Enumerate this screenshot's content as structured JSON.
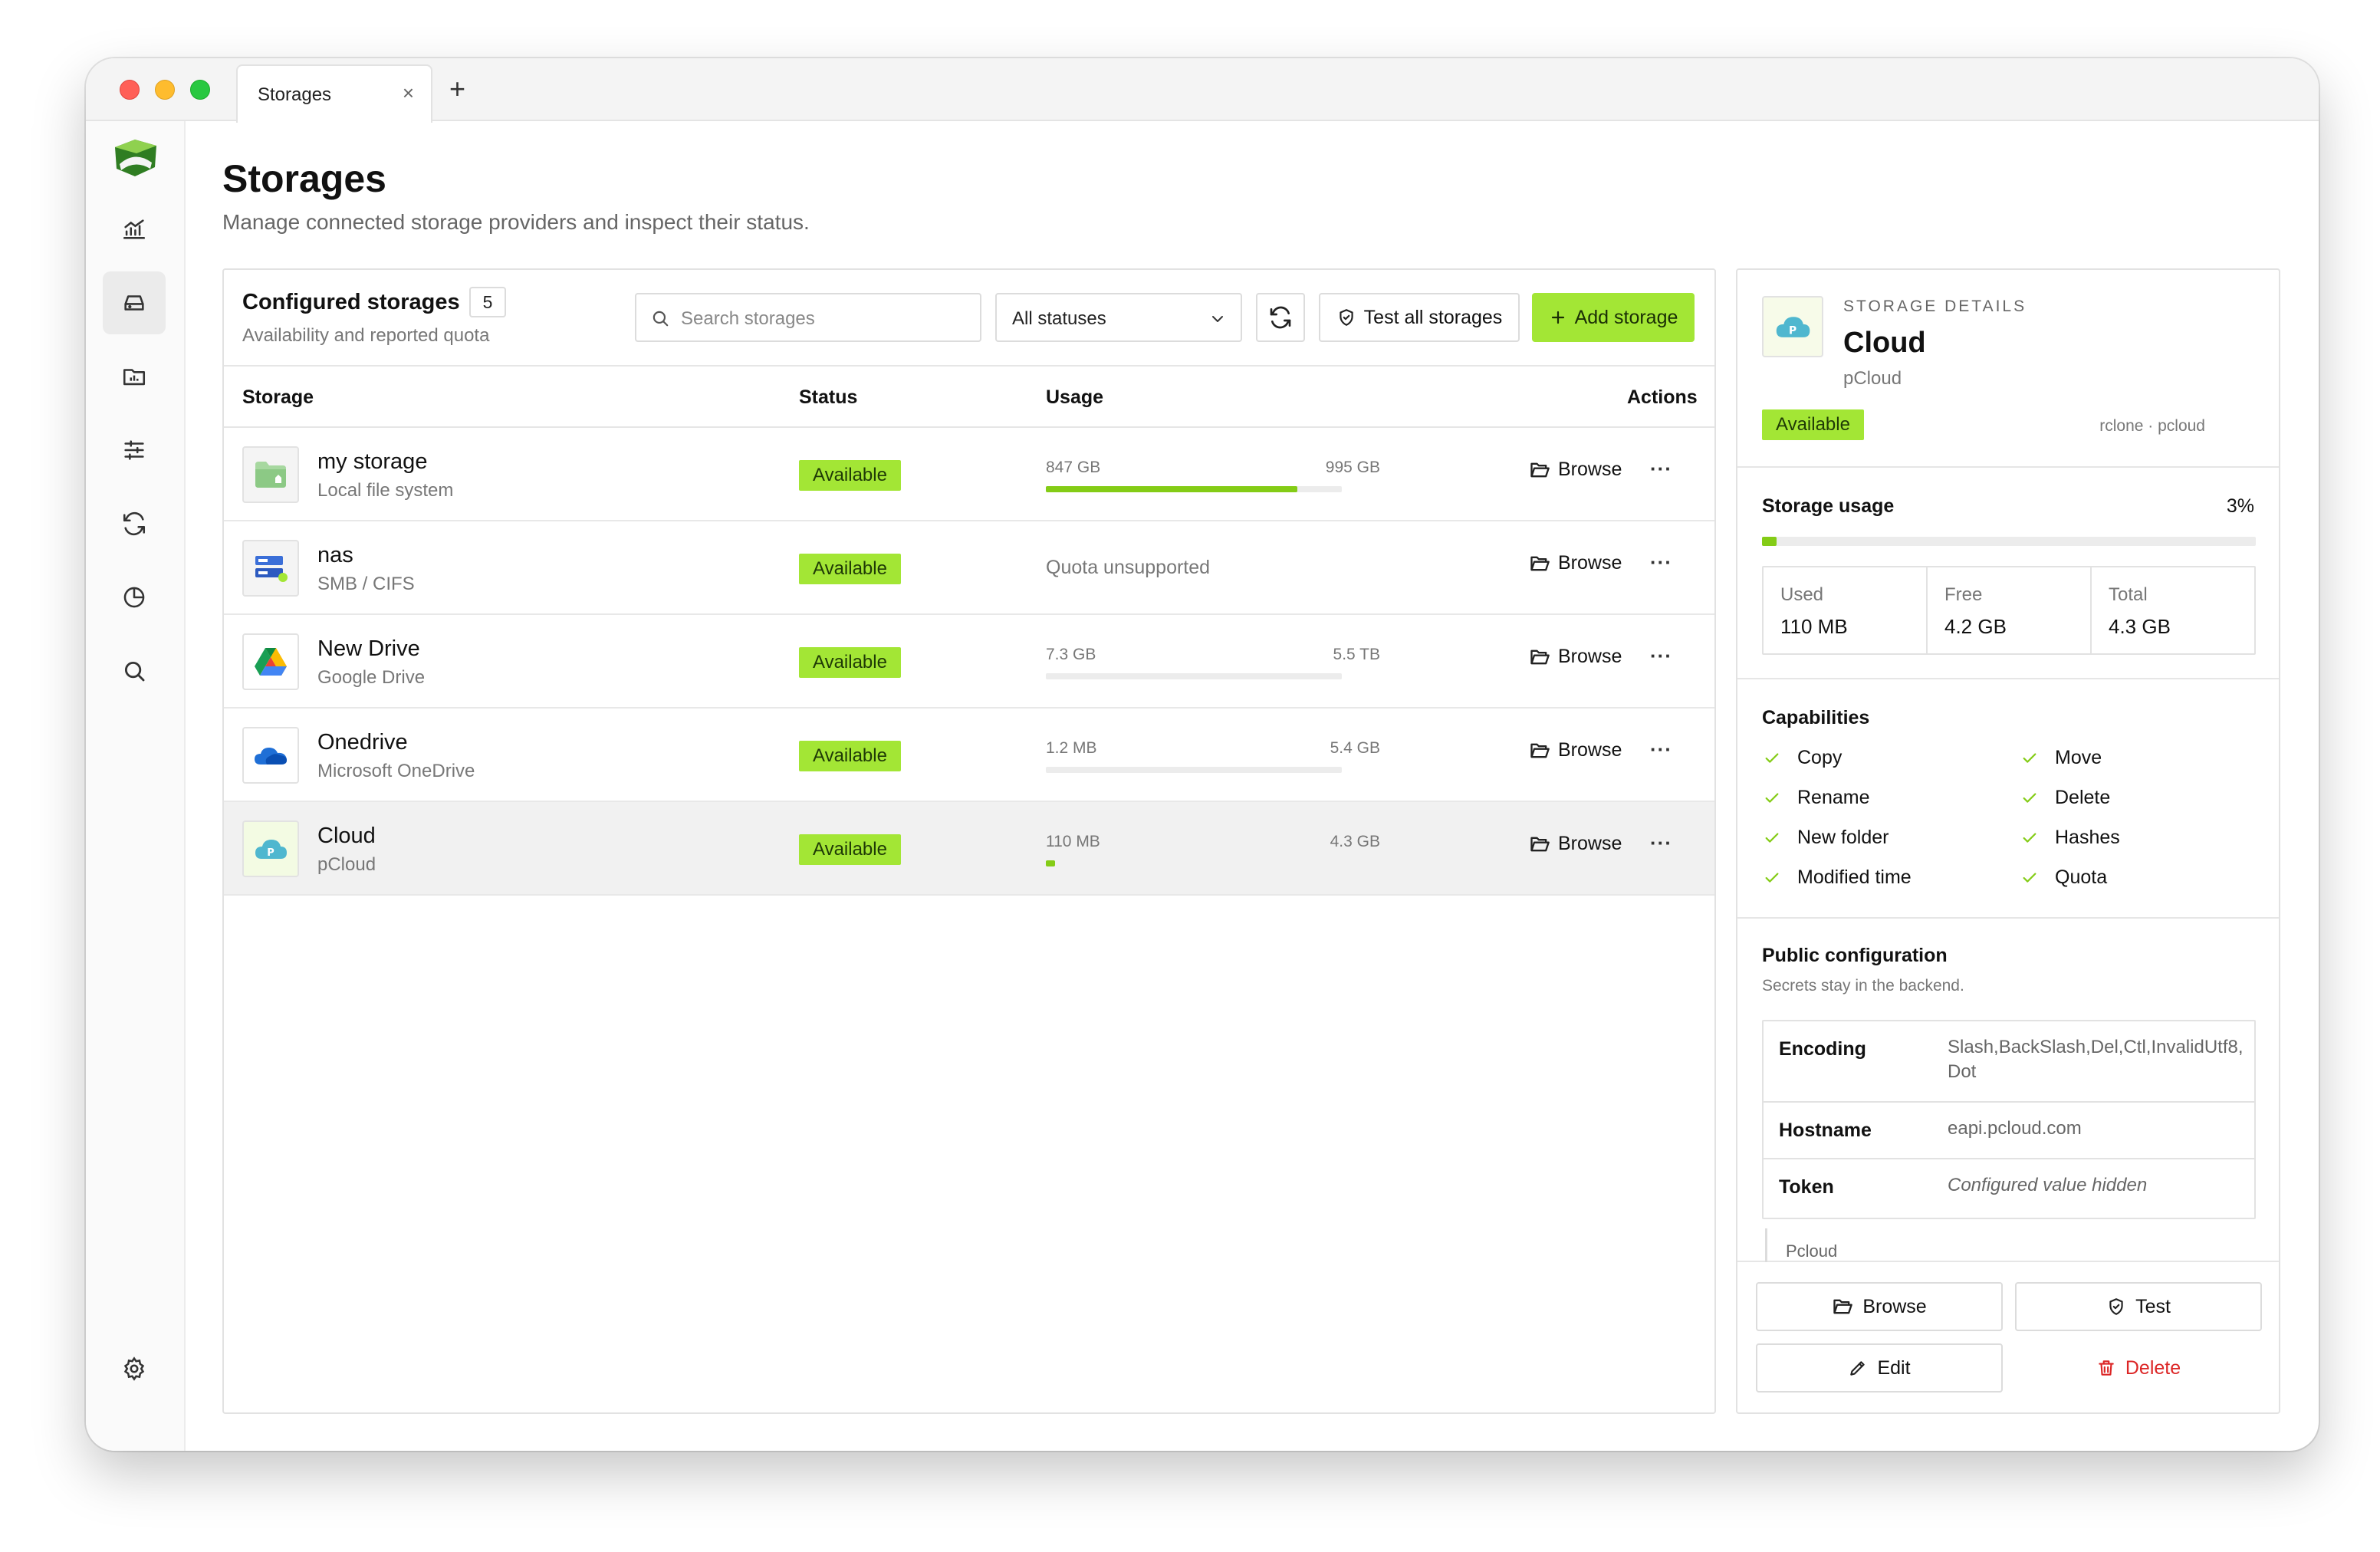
{
  "window": {
    "tab_title": "Storages",
    "tab_close": "×",
    "new_tab": "+"
  },
  "colors": {
    "accent": "#a3e635",
    "accent_fill": "#84cc16",
    "danger": "#dc2626"
  },
  "sidebar": {
    "items": [
      {
        "icon": "activity-chart-icon",
        "active": false
      },
      {
        "icon": "storage-drive-icon",
        "active": true
      },
      {
        "icon": "folder-chart-icon",
        "active": false
      },
      {
        "icon": "sliders-icon",
        "active": false
      },
      {
        "icon": "sync-icon",
        "active": false
      },
      {
        "icon": "pie-chart-icon",
        "active": false
      },
      {
        "icon": "search-icon",
        "active": false
      }
    ],
    "settings_icon": "settings-gear-icon"
  },
  "page": {
    "title": "Storages",
    "subtitle": "Manage connected storage providers and inspect their status."
  },
  "storages_card": {
    "title": "Configured storages",
    "count": "5",
    "subtitle": "Availability and reported quota",
    "search_placeholder": "Search storages",
    "status_filter": "All statuses",
    "test_all_label": "Test all storages",
    "add_label": "Add storage",
    "columns": {
      "storage": "Storage",
      "status": "Status",
      "usage": "Usage",
      "actions": "Actions"
    },
    "browse_label": "Browse",
    "more_label": "···",
    "rows": [
      {
        "name": "my storage",
        "type": "Local file system",
        "status": "Available",
        "used": "847 GB",
        "total": "995 GB",
        "fraction": 0.85,
        "note": "",
        "icon": "local-folder-icon",
        "selected": false
      },
      {
        "name": "nas",
        "type": "SMB / CIFS",
        "status": "Available",
        "used": "",
        "total": "",
        "fraction": null,
        "note": "Quota unsupported",
        "icon": "smb-server-icon",
        "selected": false
      },
      {
        "name": "New Drive",
        "type": "Google Drive",
        "status": "Available",
        "used": "7.3 GB",
        "total": "5.5 TB",
        "fraction": 0.0013,
        "note": "",
        "icon": "google-drive-icon",
        "selected": false
      },
      {
        "name": "Onedrive",
        "type": "Microsoft OneDrive",
        "status": "Available",
        "used": "1.2 MB",
        "total": "5.4 GB",
        "fraction": 0.0002,
        "note": "",
        "icon": "onedrive-cloud-icon",
        "selected": false
      },
      {
        "name": "Cloud",
        "type": "pCloud",
        "status": "Available",
        "used": "110 MB",
        "total": "4.3 GB",
        "fraction": 0.03,
        "note": "",
        "icon": "pcloud-icon",
        "selected": true
      }
    ]
  },
  "details": {
    "kicker": "STORAGE DETAILS",
    "name": "Cloud",
    "type": "pCloud",
    "status": "Available",
    "meta": "rclone · pcloud",
    "usage_title": "Storage usage",
    "usage_pct": "3%",
    "usage_fraction": 0.03,
    "stats": [
      {
        "label": "Used",
        "value": "110 MB"
      },
      {
        "label": "Free",
        "value": "4.2 GB"
      },
      {
        "label": "Total",
        "value": "4.3 GB"
      }
    ],
    "capabilities_title": "Capabilities",
    "capabilities": [
      "Copy",
      "Move",
      "Rename",
      "Delete",
      "New folder",
      "Hashes",
      "Modified time",
      "Quota"
    ],
    "config_title": "Public configuration",
    "config_sub": "Secrets stay in the backend.",
    "config": [
      {
        "key": "Encoding",
        "value": "Slash,BackSlash,Del,Ctl,InvalidUtf8,Dot"
      },
      {
        "key": "Hostname",
        "value": "eapi.pcloud.com"
      },
      {
        "key": "Token",
        "value": "Configured value hidden"
      }
    ],
    "extra": "Pcloud",
    "actions": {
      "browse": "Browse",
      "test": "Test",
      "edit": "Edit",
      "delete": "Delete"
    }
  }
}
